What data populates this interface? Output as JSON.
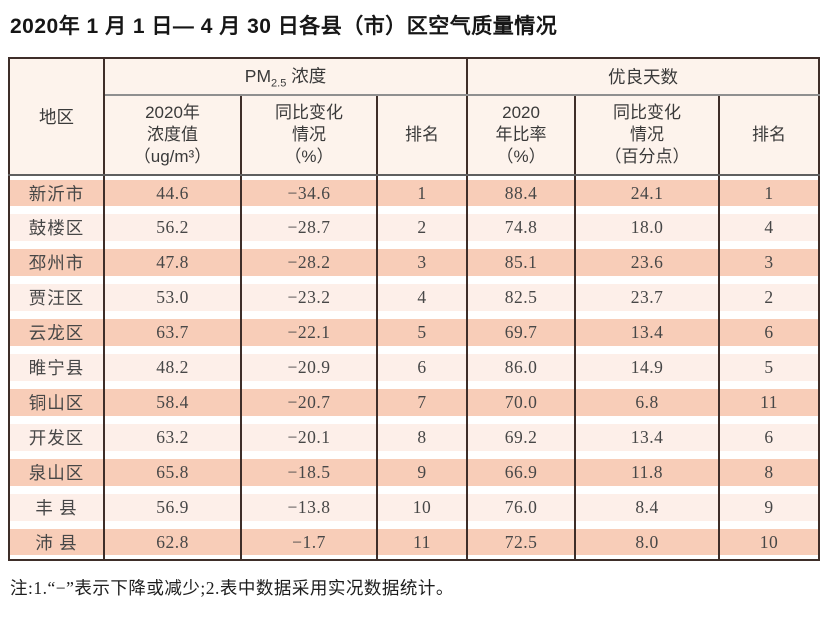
{
  "title": "2020年 1 月 1 日— 4 月 30 日各县（市）区空气质量情况",
  "table": {
    "region_header": "地区",
    "pm_group": {
      "pm": "PM",
      "sub": "2.5",
      "label": " 浓度"
    },
    "days_group": "优良天数",
    "sub_headers": {
      "pm_value": "2020年\n浓度值\n（ug/m³）",
      "pm_change": "同比变化\n情况\n（%）",
      "pm_rank": "排名",
      "days_rate": "2020\n年比率\n（%）",
      "days_change": "同比变化\n情况\n（百分点）",
      "days_rank": "排名"
    },
    "rows": [
      [
        "新沂市",
        "44.6",
        "−34.6",
        "1",
        "88.4",
        "24.1",
        "1"
      ],
      [
        "鼓楼区",
        "56.2",
        "−28.7",
        "2",
        "74.8",
        "18.0",
        "4"
      ],
      [
        "邳州市",
        "47.8",
        "−28.2",
        "3",
        "85.1",
        "23.6",
        "3"
      ],
      [
        "贾汪区",
        "53.0",
        "−23.2",
        "4",
        "82.5",
        "23.7",
        "2"
      ],
      [
        "云龙区",
        "63.7",
        "−22.1",
        "5",
        "69.7",
        "13.4",
        "6"
      ],
      [
        "睢宁县",
        "48.2",
        "−20.9",
        "6",
        "86.0",
        "14.9",
        "5"
      ],
      [
        "铜山区",
        "58.4",
        "−20.7",
        "7",
        "70.0",
        "6.8",
        "11"
      ],
      [
        "开发区",
        "63.2",
        "−20.1",
        "8",
        "69.2",
        "13.4",
        "6"
      ],
      [
        "泉山区",
        "65.8",
        "−18.5",
        "9",
        "66.9",
        "11.8",
        "8"
      ],
      [
        "丰 县",
        "56.9",
        "−13.8",
        "10",
        "76.0",
        "8.4",
        "9"
      ],
      [
        "沛 县",
        "62.8",
        "−1.7",
        "11",
        "72.5",
        "8.0",
        "10"
      ]
    ]
  },
  "note": "注:1.“−”表示下降或减少;2.表中数据采用实况数据统计。",
  "colors": {
    "row_odd": "#f8cdb8",
    "row_even": "#fdefe9",
    "header_bg": "#fdf3ec",
    "border_dark": "#3e2e29",
    "group_rule": "#8f8f8f",
    "subheader_rule": "#5f5f5f",
    "text_dark": "#474747"
  }
}
